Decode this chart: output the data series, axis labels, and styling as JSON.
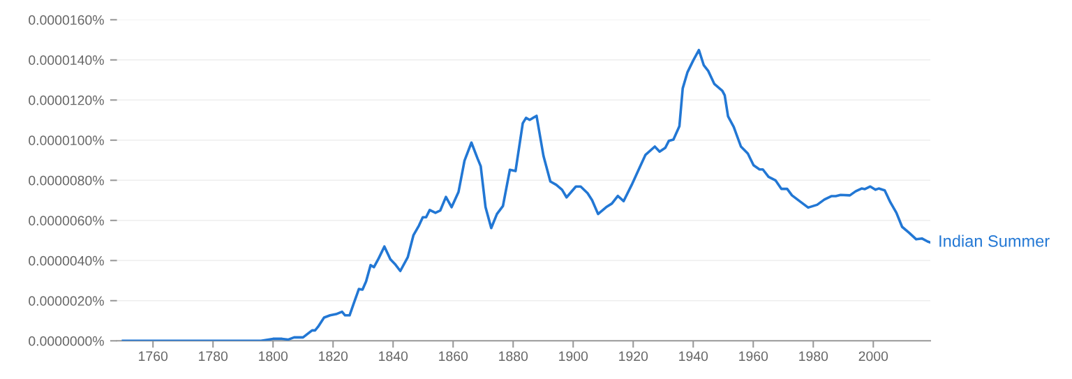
{
  "chart_data": {
    "type": "line",
    "x": [
      1750,
      1796,
      1800,
      1803,
      1805,
      1807,
      1810,
      1813,
      1814,
      1815,
      1817,
      1819,
      1821,
      1823,
      1824,
      1825.5,
      1827,
      1828.6,
      1829.8,
      1831,
      1832.5,
      1833.6,
      1835.2,
      1837.1,
      1839.1,
      1840.6,
      1842.4,
      1844.9,
      1846.8,
      1848.6,
      1849.9,
      1851,
      1852.2,
      1854.1,
      1855.7,
      1857.6,
      1859.5,
      1861.8,
      1863.8,
      1866.1,
      1868.1,
      1869.2,
      1870.8,
      1872.7,
      1874.6,
      1876.6,
      1878.9,
      1880.8,
      1883.2,
      1884.3,
      1885.5,
      1887.8,
      1890.1,
      1892.4,
      1894.4,
      1896.3,
      1897.8,
      1900.9,
      1902.5,
      1904.8,
      1906.3,
      1908.3,
      1911,
      1912.9,
      1914.9,
      1916.8,
      1919.5,
      1921.8,
      1924.1,
      1927.2,
      1928.8,
      1930.7,
      1931.9,
      1933.4,
      1935.4,
      1936.5,
      1938.1,
      1940,
      1941.9,
      1943.5,
      1945,
      1947,
      1949.7,
      1950.5,
      1951.6,
      1953.5,
      1955.9,
      1958.2,
      1960.1,
      1962.1,
      1963.2,
      1965.1,
      1967.4,
      1969.4,
      1971.3,
      1972.9,
      1975.2,
      1978.3,
      1981.3,
      1983.7,
      1986,
      1987.5,
      1989.1,
      1992.2,
      1994.1,
      1996.1,
      1997.2,
      1999,
      2000.7,
      2001.8,
      2003.8,
      2005.7,
      2007.7,
      2009.6,
      2011.9,
      2014.3,
      2016.2,
      2018.1,
      2019
    ],
    "series": [
      {
        "name": "Indian Summer",
        "color": "#2277d4",
        "values": [
          0,
          0,
          1e-07,
          1e-07,
          6e-08,
          1.7e-07,
          1.7e-07,
          5.2e-07,
          5.2e-07,
          7e-07,
          1.16e-06,
          1.27e-06,
          1.33e-06,
          1.45e-06,
          1.27e-06,
          1.27e-06,
          1.91e-06,
          2.58e-06,
          2.55e-06,
          2.96e-06,
          3.77e-06,
          3.67e-06,
          4.11e-06,
          4.7e-06,
          4.06e-06,
          3.83e-06,
          3.48e-06,
          4.17e-06,
          5.27e-06,
          5.74e-06,
          6.16e-06,
          6.16e-06,
          6.52e-06,
          6.38e-06,
          6.49e-06,
          7.17e-06,
          6.66e-06,
          7.42e-06,
          8.98e-06,
          9.88e-06,
          9.1e-06,
          8.7e-06,
          6.66e-06,
          5.62e-06,
          6.32e-06,
          6.72e-06,
          8.52e-06,
          8.46e-06,
          1.084e-05,
          1.111e-05,
          1.101e-05,
          1.121e-05,
          9.22e-06,
          7.94e-06,
          7.77e-06,
          7.53e-06,
          7.15e-06,
          7.69e-06,
          7.69e-06,
          7.36e-06,
          7.01e-06,
          6.32e-06,
          6.66e-06,
          6.84e-06,
          7.22e-06,
          6.96e-06,
          7.77e-06,
          8.52e-06,
          9.27e-06,
          9.68e-06,
          9.43e-06,
          9.62e-06,
          9.97e-06,
          1.003e-05,
          1.07e-05,
          1.258e-05,
          1.339e-05,
          1.397e-05,
          1.449e-05,
          1.374e-05,
          1.345e-05,
          1.281e-05,
          1.246e-05,
          1.223e-05,
          1.119e-05,
          1.066e-05,
          9.68e-06,
          9.33e-06,
          8.75e-06,
          8.54e-06,
          8.54e-06,
          8.17e-06,
          8e-06,
          7.57e-06,
          7.57e-06,
          7.25e-06,
          6.99e-06,
          6.64e-06,
          6.78e-06,
          7.04e-06,
          7.21e-06,
          7.21e-06,
          7.27e-06,
          7.25e-06,
          7.45e-06,
          7.59e-06,
          7.56e-06,
          7.69e-06,
          7.53e-06,
          7.59e-06,
          7.5e-06,
          6.9e-06,
          6.38e-06,
          5.68e-06,
          5.39e-06,
          5.06e-06,
          5.1e-06,
          4.95e-06,
          4.9e-06
        ]
      }
    ],
    "xlim": [
      1748,
      2019
    ],
    "xticks": [
      1760,
      1780,
      1800,
      1820,
      1840,
      1860,
      1880,
      1900,
      1920,
      1940,
      1960,
      1980,
      2000
    ],
    "ylim": [
      0,
      1.6e-05
    ],
    "yticks": [
      {
        "value": 0,
        "label": "0.0000000%"
      },
      {
        "value": 2e-06,
        "label": "0.0000020%"
      },
      {
        "value": 4e-06,
        "label": "0.0000040%"
      },
      {
        "value": 6e-06,
        "label": "0.0000060%"
      },
      {
        "value": 8e-06,
        "label": "0.0000080%"
      },
      {
        "value": 1e-05,
        "label": "0.0000100%"
      },
      {
        "value": 1.2e-05,
        "label": "0.0000120%"
      },
      {
        "value": 1.4e-05,
        "label": "0.0000140%"
      },
      {
        "value": 1.6e-05,
        "label": "0.0000160%"
      }
    ],
    "grid": "y",
    "marker": "none",
    "line_style": "solid"
  }
}
